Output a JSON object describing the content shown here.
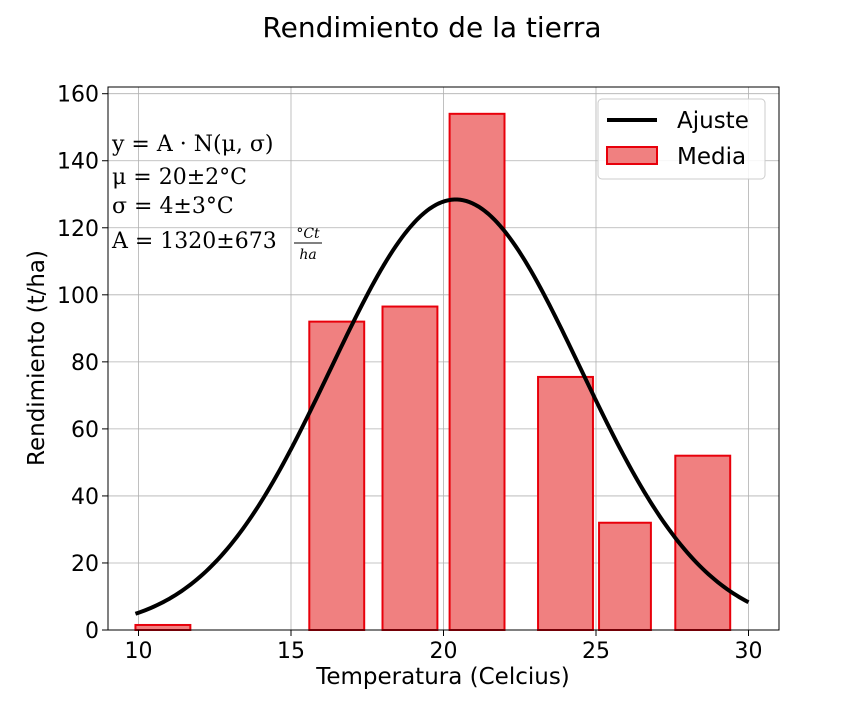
{
  "chart_data": {
    "type": "bar",
    "title": "Rendimiento de la tierra",
    "xlabel": "Temperatura (Celcius)",
    "ylabel": "Rendimiento (t/ha)",
    "xlim": [
      9,
      31
    ],
    "ylim": [
      0,
      162
    ],
    "xticks": [
      10,
      15,
      20,
      25,
      30
    ],
    "yticks": [
      0,
      20,
      40,
      60,
      80,
      100,
      120,
      140,
      160
    ],
    "grid": true,
    "legend_position": "top-right",
    "bars": [
      {
        "x0": 9.9,
        "x1": 11.7,
        "value": 1.5
      },
      {
        "x0": 15.6,
        "x1": 17.4,
        "value": 92
      },
      {
        "x0": 18.0,
        "x1": 19.8,
        "value": 96.5
      },
      {
        "x0": 20.2,
        "x1": 22.0,
        "value": 154
      },
      {
        "x0": 23.1,
        "x1": 24.9,
        "value": 75.5
      },
      {
        "x0": 25.1,
        "x1": 26.8,
        "value": 32
      },
      {
        "x0": 27.6,
        "x1": 29.4,
        "value": 52
      }
    ],
    "fit": {
      "A": 1320,
      "mu": 20.4,
      "sigma": 4.1,
      "x_start": 9.9,
      "x_end": 30.0
    },
    "series": [
      {
        "name": "Ajuste",
        "kind": "line",
        "color": "#000000"
      },
      {
        "name": "Media",
        "kind": "bar",
        "color": "#f08080",
        "edge_color": "#e8000b"
      }
    ],
    "annotation": {
      "line1": "y = A · N(μ, σ)",
      "line2": "μ = 20±2°C",
      "line3": "σ = 4±3°C",
      "line4": "A = 1320±673",
      "frac_num": "°Ct",
      "frac_den": "ha"
    }
  }
}
